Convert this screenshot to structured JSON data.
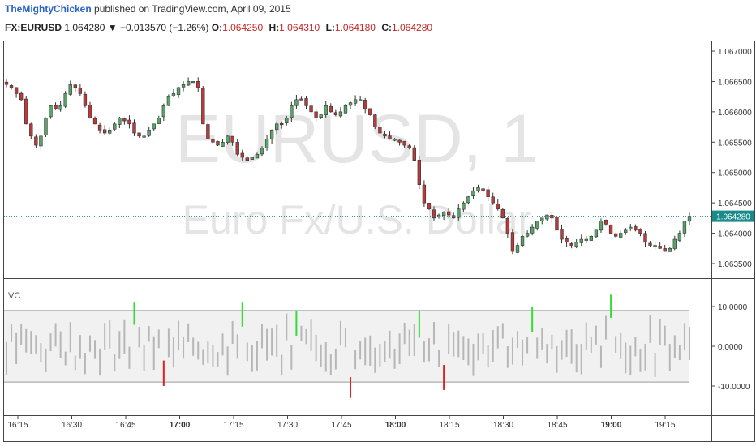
{
  "header": {
    "author": "TheMightyChicken",
    "published_text": "published on TradingView.com, April 09, 2015"
  },
  "ticker": {
    "symbol": "FX:EURUSD",
    "last": "1.064280",
    "change": "▼ −0.013570 (−1.26%)",
    "o_label": "O:",
    "o": "1.064250",
    "h_label": "H:",
    "h": "1.064310",
    "l_label": "L:",
    "l": "1.064180",
    "c_label": "C:",
    "c": "1.064280"
  },
  "watermark": {
    "symbol": "EURUSD, 1",
    "description": "Euro Fx/U.S. Dollar"
  },
  "colors": {
    "up": "#5aa36a",
    "down": "#b83a3a",
    "wick": "#333333",
    "vc_gray": "#b7b7b7",
    "vc_green": "#33dd33",
    "vc_red": "#dd2222",
    "last_line": "#1a8a8a",
    "band": "#f1f1f1"
  },
  "chart_data": [
    {
      "type": "candlestick",
      "price_axis": {
        "ticks": [
          "1.067000",
          "1.066500",
          "1.066000",
          "1.065500",
          "1.065000",
          "1.064500",
          "1.064000",
          "1.063500"
        ],
        "range": [
          1.0632,
          1.0672
        ]
      },
      "time_axis": {
        "ticks": [
          "16:15",
          "16:30",
          "16:45",
          "17:00",
          "17:15",
          "17:30",
          "17:45",
          "18:00",
          "18:15",
          "18:30",
          "18:45",
          "19:00",
          "19:15"
        ]
      },
      "last_price": {
        "value": 1.06428,
        "label": "1.064280"
      },
      "close_path": [
        1.06645,
        1.0664,
        1.0663,
        1.0662,
        1.0658,
        1.0656,
        1.06545,
        1.0656,
        1.0659,
        1.0661,
        1.06605,
        1.0661,
        1.0663,
        1.06645,
        1.0664,
        1.0663,
        1.0661,
        1.0659,
        1.0658,
        1.0657,
        1.06565,
        1.0657,
        1.0658,
        1.0659,
        1.06585,
        1.0658,
        1.06565,
        1.0656,
        1.0656,
        1.0657,
        1.0658,
        1.0659,
        1.0661,
        1.06625,
        1.0663,
        1.0664,
        1.06645,
        1.0665,
        1.0665,
        1.0664,
        1.0658,
        1.06555,
        1.0655,
        1.06545,
        1.0655,
        1.0656,
        1.0655,
        1.0653,
        1.06525,
        1.0652,
        1.06525,
        1.0653,
        1.0654,
        1.06555,
        1.0657,
        1.0658,
        1.0658,
        1.0659,
        1.0661,
        1.0662,
        1.0662,
        1.0661,
        1.066,
        1.0659,
        1.06595,
        1.0661,
        1.066,
        1.06595,
        1.066,
        1.0661,
        1.06615,
        1.0662,
        1.0662,
        1.06605,
        1.06595,
        1.06575,
        1.06565,
        1.0656,
        1.06555,
        1.06555,
        1.0655,
        1.06545,
        1.0654,
        1.0652,
        1.0648,
        1.0645,
        1.0644,
        1.06425,
        1.0643,
        1.06435,
        1.0643,
        1.06425,
        1.0644,
        1.0645,
        1.0646,
        1.0647,
        1.06475,
        1.0647,
        1.0646,
        1.0645,
        1.0644,
        1.06425,
        1.064,
        1.0637,
        1.0638,
        1.06395,
        1.064,
        1.0641,
        1.0642,
        1.06425,
        1.0643,
        1.06425,
        1.06405,
        1.0639,
        1.06385,
        1.0638,
        1.06385,
        1.0639,
        1.0639,
        1.06395,
        1.06405,
        1.0642,
        1.06415,
        1.064,
        1.06395,
        1.064,
        1.06405,
        1.0641,
        1.06405,
        1.064,
        1.06385,
        1.0638,
        1.0638,
        1.06375,
        1.0637,
        1.06375,
        1.0639,
        1.064,
        1.0642,
        1.06428
      ]
    },
    {
      "type": "bar",
      "label": "VC",
      "axis": {
        "ticks": [
          "10.0000",
          "0.0000",
          "-10.0000"
        ],
        "range": [
          -15,
          15
        ]
      },
      "band": [
        -9,
        9
      ],
      "spikes": [
        {
          "i": 26,
          "value": 11,
          "color": "green"
        },
        {
          "i": 32,
          "value": -10,
          "color": "red"
        },
        {
          "i": 48,
          "value": 11,
          "color": "green"
        },
        {
          "i": 59,
          "value": 9,
          "color": "green"
        },
        {
          "i": 70,
          "value": -13,
          "color": "red"
        },
        {
          "i": 84,
          "value": 9,
          "color": "green"
        },
        {
          "i": 89,
          "value": -11,
          "color": "red"
        },
        {
          "i": 107,
          "value": 10,
          "color": "green"
        },
        {
          "i": 123,
          "value": 13,
          "color": "green"
        }
      ]
    }
  ]
}
